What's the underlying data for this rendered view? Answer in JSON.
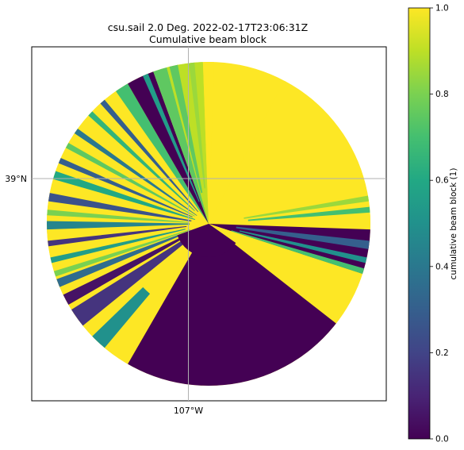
{
  "chart_data": {
    "type": "heatmap",
    "title_line1": "csu.sail 2.0 Deg. 2022-02-17T23:06:31Z",
    "title_line2": "Cumulative beam block",
    "x_tick_label": "107°W",
    "y_tick_label": "39°N",
    "grid": "on",
    "colorbar": {
      "label": "cumulative beam block (1)",
      "min": 0.0,
      "max": 1.0,
      "ticks": [
        "0.0",
        "0.2",
        "0.4",
        "0.6",
        "0.8",
        "1.0"
      ],
      "colormap": "viridis"
    },
    "colors": {
      "clear": "#fde725",
      "blocked": "#440154",
      "mid": "#21918c",
      "light": "#7ad151",
      "blue": "#3b528b"
    },
    "sectors": [
      {
        "from_deg": 28,
        "to_deg": 92,
        "value": 1.0
      },
      {
        "from_deg": 92,
        "to_deg": 108,
        "value": 0.0
      },
      {
        "from_deg": 108,
        "to_deg": 128,
        "value": 1.0
      },
      {
        "from_deg": 128,
        "to_deg": 210,
        "value": 0.0
      },
      {
        "from_deg": 210,
        "to_deg": 325,
        "value": 1.0
      },
      {
        "from_deg": 325,
        "to_deg": 330,
        "value": 0.7
      },
      {
        "from_deg": 330,
        "to_deg": 340,
        "value": 0.0
      },
      {
        "from_deg": 340,
        "to_deg": 345,
        "value": 0.75
      },
      {
        "from_deg": 345,
        "to_deg": 358,
        "value": 0.9
      },
      {
        "from_deg": 358,
        "to_deg": 362,
        "value": 1.0
      }
    ]
  }
}
